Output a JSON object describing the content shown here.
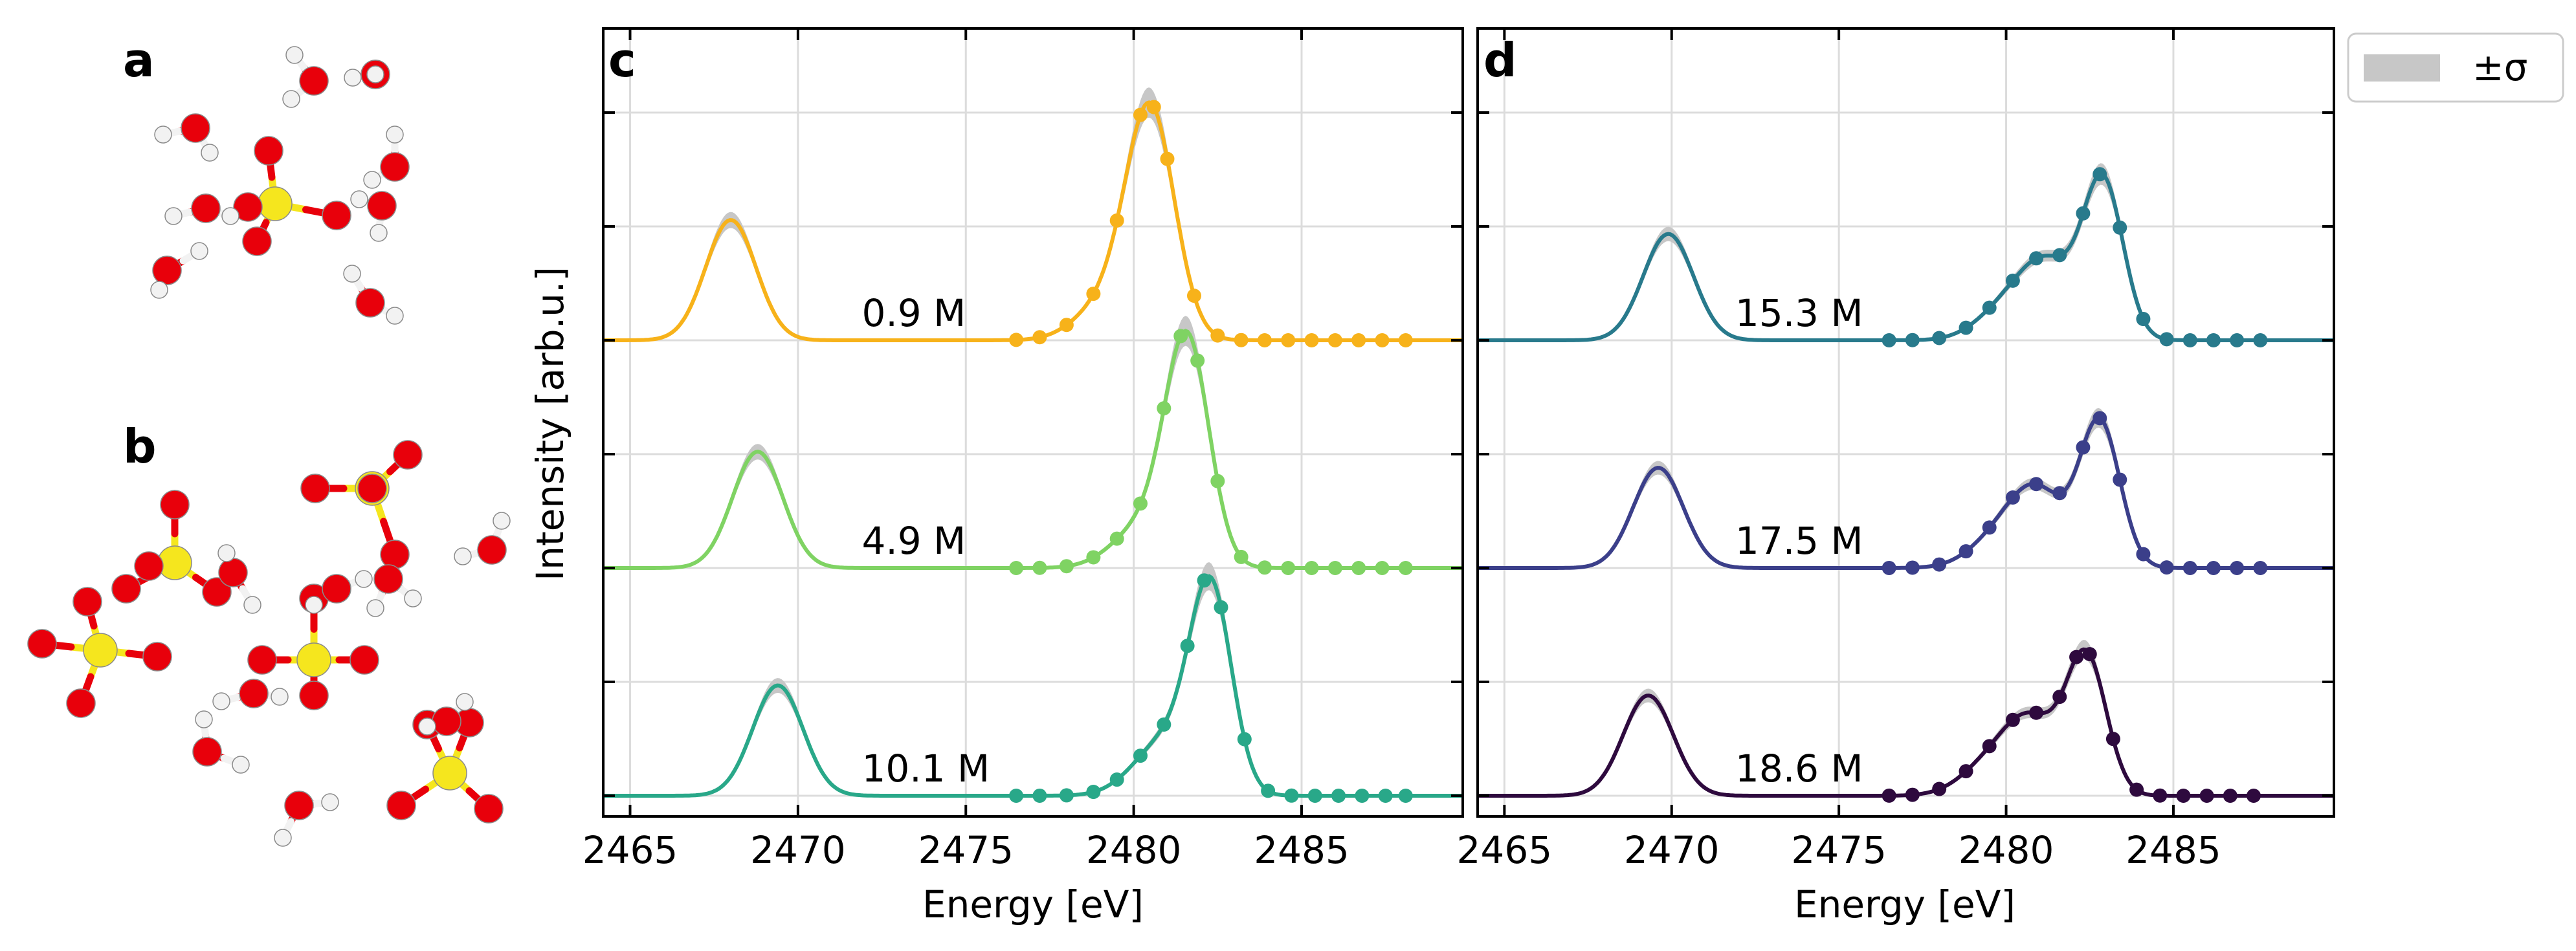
{
  "panels": {
    "a_label": "a",
    "b_label": "b"
  },
  "colors": {
    "oxygen": "#e8000b",
    "hydrogen": "#f2f2f2",
    "sulfur": "#f5e61e",
    "band": "#c7c7c7",
    "grid": "#dcdcdc",
    "axis": "#000000"
  },
  "legend": {
    "label": "±σ"
  },
  "chart_data": [
    {
      "type": "line",
      "panel": "c",
      "xlabel": "Energy [eV]",
      "ylabel": "Intensity [arb.u.]",
      "xlim": [
        2464.2,
        2489.8
      ],
      "xticks": [
        2465,
        2470,
        2475,
        2480,
        2485
      ],
      "y_offset_step": 1.0,
      "series": [
        {
          "name": "0.9 M",
          "color": "#f7b21a",
          "offset": 2,
          "peaks": [
            {
              "center": 2468.0,
              "height": 0.6,
              "width": 0.75
            },
            {
              "center": 2480.5,
              "height": 1.12,
              "width": 0.72
            },
            {
              "center": 2479.2,
              "height": 0.18,
              "width": 0.9
            }
          ],
          "points_x": [
            2476.5,
            2477.2,
            2478.0,
            2478.8,
            2479.5,
            2480.2,
            2480.6,
            2481.0,
            2481.8,
            2482.5,
            2483.2,
            2483.9,
            2484.6,
            2485.3,
            2486.0,
            2486.7,
            2487.4,
            2488.1
          ]
        },
        {
          "name": "4.9 M",
          "color": "#7fd363",
          "offset": 1,
          "peaks": [
            {
              "center": 2468.8,
              "height": 0.58,
              "width": 0.75
            },
            {
              "center": 2481.6,
              "height": 1.08,
              "width": 0.65
            },
            {
              "center": 2480.4,
              "height": 0.22,
              "width": 0.95
            }
          ],
          "points_x": [
            2476.5,
            2477.2,
            2478.0,
            2478.8,
            2479.5,
            2480.2,
            2480.9,
            2481.4,
            2481.9,
            2482.5,
            2483.2,
            2483.9,
            2484.6,
            2485.3,
            2486.0,
            2486.7,
            2487.4,
            2488.1
          ]
        },
        {
          "name": "10.1 M",
          "color": "#29a889",
          "offset": 0,
          "peaks": [
            {
              "center": 2469.4,
              "height": 0.55,
              "width": 0.75
            },
            {
              "center": 2482.3,
              "height": 0.98,
              "width": 0.62
            },
            {
              "center": 2481.0,
              "height": 0.28,
              "width": 0.95
            }
          ],
          "points_x": [
            2476.5,
            2477.2,
            2478.0,
            2478.8,
            2479.5,
            2480.2,
            2480.9,
            2481.6,
            2482.1,
            2482.6,
            2483.3,
            2484.0,
            2484.7,
            2485.4,
            2486.1,
            2486.8,
            2487.5,
            2488.1
          ]
        }
      ]
    },
    {
      "type": "line",
      "panel": "d",
      "xlabel": "Energy [eV]",
      "ylabel": "",
      "xlim": [
        2464.2,
        2489.8
      ],
      "xticks": [
        2465,
        2470,
        2475,
        2480,
        2485
      ],
      "y_offset_step": 1.0,
      "series": [
        {
          "name": "15.3 M",
          "color": "#287a8c",
          "offset": 2,
          "peaks": [
            {
              "center": 2469.9,
              "height": 0.53,
              "width": 0.75
            },
            {
              "center": 2482.9,
              "height": 0.78,
              "width": 0.6
            },
            {
              "center": 2481.3,
              "height": 0.33,
              "width": 0.8
            },
            {
              "center": 2480.1,
              "height": 0.17,
              "width": 0.9
            }
          ],
          "points_x": [
            2476.5,
            2477.2,
            2478.0,
            2478.8,
            2479.5,
            2480.2,
            2480.9,
            2481.6,
            2482.3,
            2482.8,
            2483.4,
            2484.1,
            2484.8,
            2485.5,
            2486.2,
            2486.9,
            2487.6
          ]
        },
        {
          "name": "17.5 M",
          "color": "#3b3f8a",
          "offset": 1,
          "peaks": [
            {
              "center": 2469.6,
              "height": 0.5,
              "width": 0.75
            },
            {
              "center": 2482.8,
              "height": 0.72,
              "width": 0.6
            },
            {
              "center": 2481.0,
              "height": 0.33,
              "width": 0.8
            },
            {
              "center": 2479.9,
              "height": 0.16,
              "width": 0.9
            }
          ],
          "points_x": [
            2476.5,
            2477.2,
            2478.0,
            2478.8,
            2479.5,
            2480.2,
            2480.9,
            2481.6,
            2482.3,
            2482.8,
            2483.4,
            2484.1,
            2484.8,
            2485.5,
            2486.2,
            2486.9,
            2487.6
          ]
        },
        {
          "name": "18.6 M",
          "color": "#2e0a3e",
          "offset": 0,
          "peaks": [
            {
              "center": 2469.3,
              "height": 0.5,
              "width": 0.75
            },
            {
              "center": 2482.4,
              "height": 0.68,
              "width": 0.6
            },
            {
              "center": 2480.8,
              "height": 0.33,
              "width": 0.8
            },
            {
              "center": 2479.6,
              "height": 0.16,
              "width": 0.9
            }
          ],
          "points_x": [
            2476.5,
            2477.2,
            2478.0,
            2478.8,
            2479.5,
            2480.2,
            2480.9,
            2481.6,
            2482.1,
            2482.5,
            2483.2,
            2483.9,
            2484.6,
            2485.3,
            2486.0,
            2486.7,
            2487.4
          ]
        }
      ]
    }
  ]
}
